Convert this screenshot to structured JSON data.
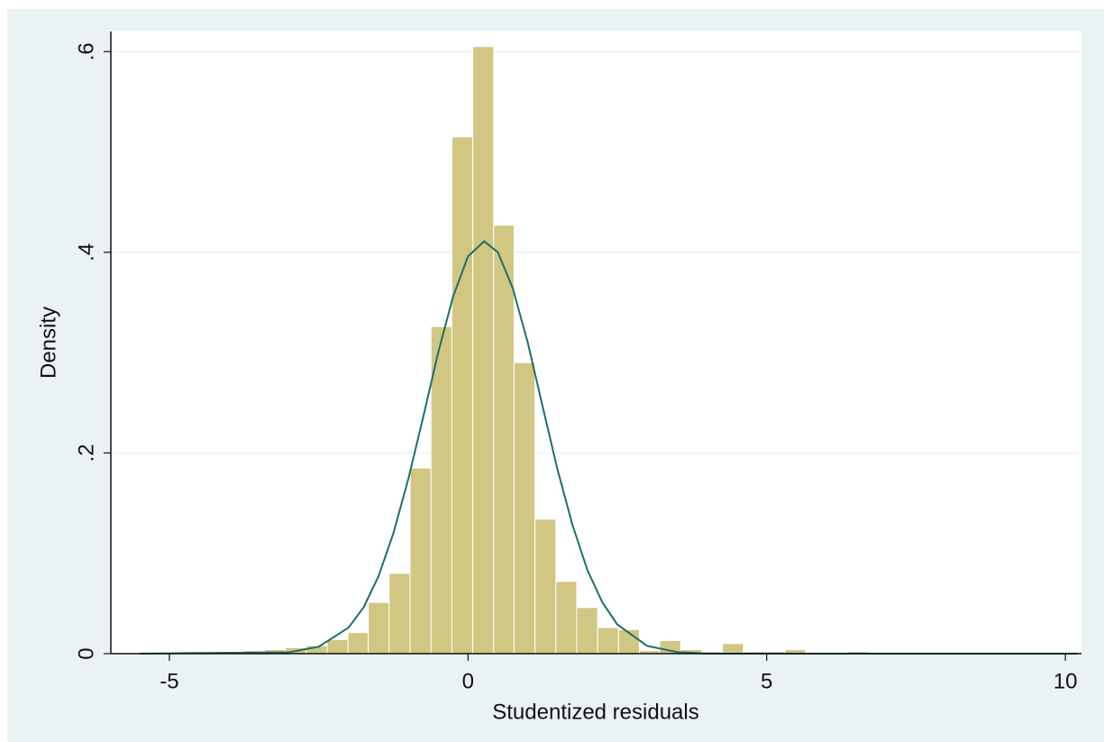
{
  "chart_data": {
    "type": "histogram",
    "xlabel": "Studentized residuals",
    "ylabel": "Density",
    "bins": [
      -5.5,
      -5.15,
      -4.8,
      -4.45,
      -4.11,
      -3.76,
      -3.41,
      -3.06,
      -2.71,
      -2.36,
      -2.01,
      -1.67,
      -1.32,
      -0.97,
      -0.62,
      -0.27,
      0.08,
      0.43,
      0.77,
      1.12,
      1.47,
      1.82,
      2.17,
      2.52,
      2.87,
      3.21,
      3.56,
      3.91,
      4.26,
      4.61,
      4.96,
      5.31,
      5.65,
      6.0,
      6.35,
      6.7
    ],
    "values": [
      0.0005,
      0.0005,
      0.002,
      0,
      0.001,
      0.003,
      0.004,
      0.006,
      0.008,
      0.014,
      0.021,
      0.051,
      0.08,
      0.185,
      0.326,
      0.515,
      0.605,
      0.427,
      0.29,
      0.134,
      0.072,
      0.046,
      0.026,
      0.024,
      0.003,
      0.013,
      0.004,
      0.002,
      0.01,
      0.002,
      0.002,
      0.004,
      0.001,
      0,
      0.002
    ],
    "color": "#d1c682",
    "curve": {
      "color": "#1f6e6b",
      "x": [
        -5.5,
        -3,
        -2.5,
        -2,
        -1.75,
        -1.5,
        -1.25,
        -1,
        -0.75,
        -0.5,
        -0.25,
        0,
        0.27,
        0.5,
        0.75,
        1,
        1.25,
        1.5,
        1.75,
        2,
        2.25,
        2.5,
        3,
        3.5,
        4,
        10.2
      ],
      "values": [
        0,
        0.0014,
        0.0069,
        0.026,
        0.046,
        0.077,
        0.12,
        0.174,
        0.236,
        0.3,
        0.356,
        0.396,
        0.411,
        0.4,
        0.364,
        0.31,
        0.246,
        0.183,
        0.128,
        0.083,
        0.051,
        0.029,
        0.0077,
        0.0016,
        0,
        0
      ]
    },
    "xlim": [
      -5.98,
      10.27
    ],
    "xticks": [
      -5,
      0,
      5,
      10
    ],
    "ylim": [
      0,
      0.62
    ],
    "yticks": [
      0,
      {
        "value": 0.2,
        "label": ".2"
      },
      {
        "value": 0.4,
        "label": ".4"
      },
      {
        "value": 0.6,
        "label": ".6"
      }
    ],
    "grid": true
  }
}
